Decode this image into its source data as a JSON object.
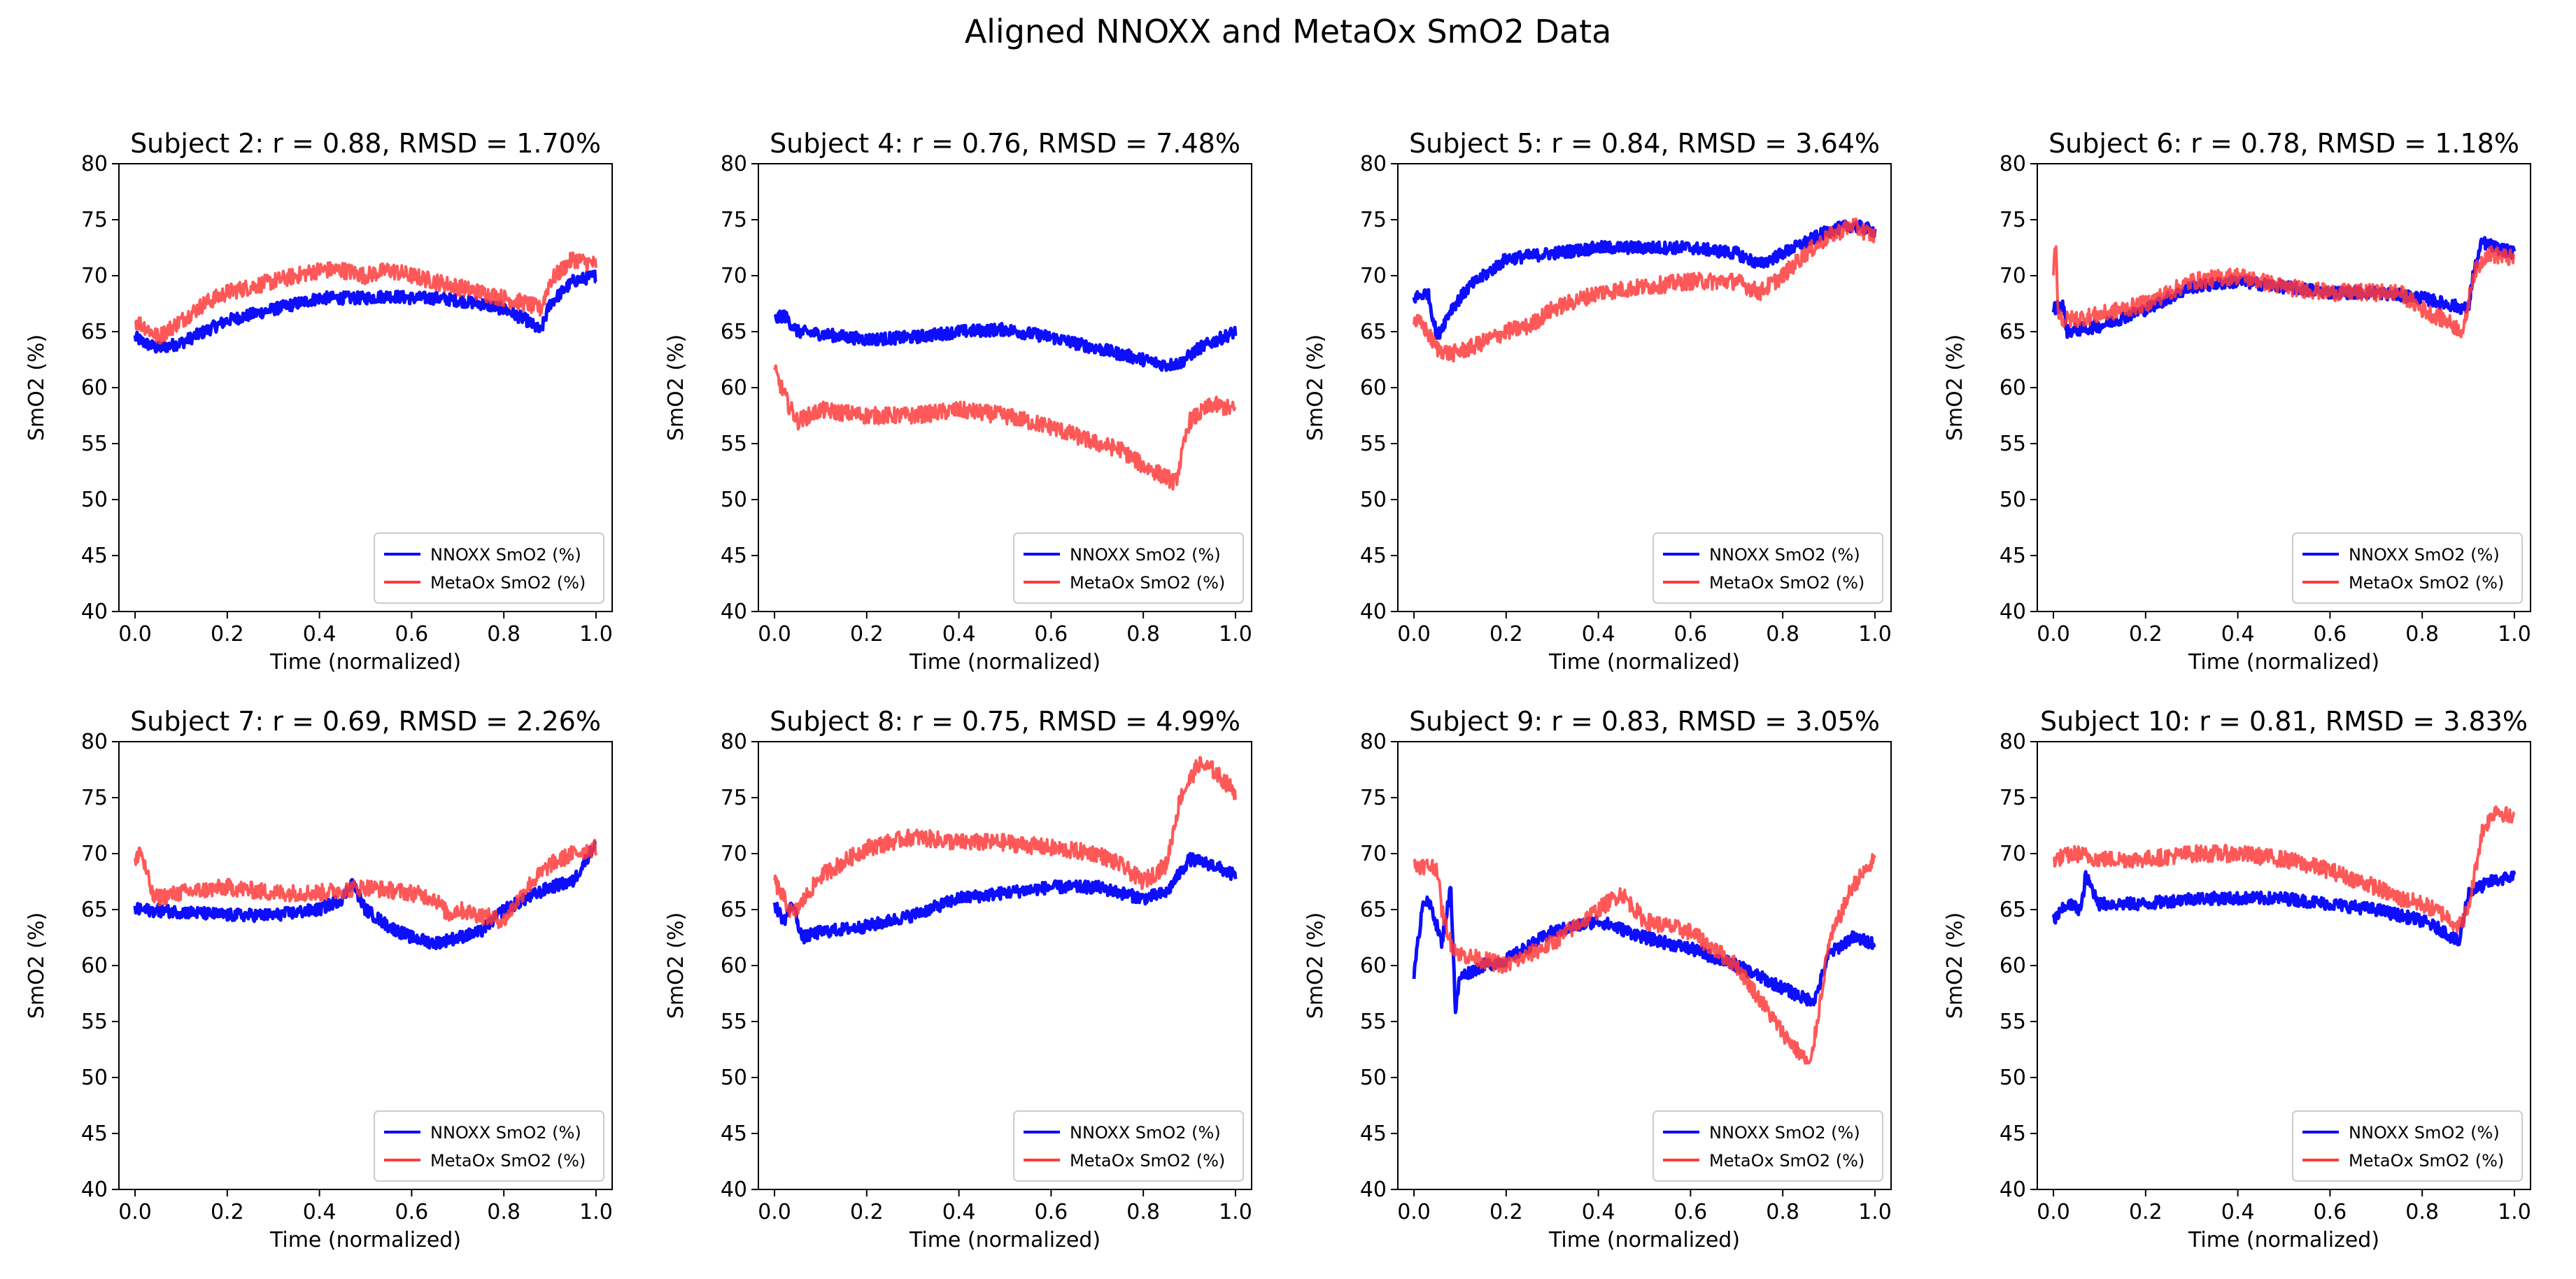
{
  "figure": {
    "title": "Aligned NNOXX and MetaOx SmO2 Data"
  },
  "colors": {
    "nnoxx": "#0000ff",
    "metaox": "#ff3b3b"
  },
  "chart_data": [
    {
      "type": "line",
      "title": "Subject 2: r = 0.88, RMSD = 1.70%",
      "xlabel": "Time (normalized)",
      "ylabel": "SmO2 (%)",
      "xlim": [
        0,
        1
      ],
      "ylim": [
        40,
        80
      ],
      "xticks": [
        "0.0",
        "0.2",
        "0.4",
        "0.6",
        "0.8",
        "1.0"
      ],
      "yticks": [
        "40",
        "45",
        "50",
        "55",
        "60",
        "65",
        "70",
        "75",
        "80"
      ],
      "legend": "lower-right",
      "grid": false,
      "series": [
        {
          "name": "NNOXX SmO2 (%)",
          "x": [
            0,
            0.02,
            0.05,
            0.1,
            0.15,
            0.2,
            0.25,
            0.3,
            0.35,
            0.4,
            0.45,
            0.5,
            0.55,
            0.6,
            0.65,
            0.7,
            0.75,
            0.8,
            0.85,
            0.88,
            0.9,
            0.95,
            1.0
          ],
          "y": [
            64.5,
            64,
            63.5,
            64,
            65,
            66,
            66.5,
            67,
            67.5,
            68,
            68,
            68,
            68.2,
            68,
            68,
            67.8,
            67.5,
            67,
            66,
            65,
            67.5,
            69.5,
            70
          ]
        },
        {
          "name": "MetaOx SmO2 (%)",
          "x": [
            0,
            0.02,
            0.05,
            0.1,
            0.15,
            0.2,
            0.25,
            0.3,
            0.35,
            0.4,
            0.45,
            0.5,
            0.55,
            0.6,
            0.65,
            0.7,
            0.75,
            0.8,
            0.85,
            0.88,
            0.9,
            0.95,
            1.0
          ],
          "y": [
            66,
            65.5,
            64.5,
            66,
            67.5,
            68.5,
            69,
            69.5,
            70,
            70.5,
            70.5,
            70,
            70.5,
            70,
            69.5,
            69,
            68.5,
            68,
            67.5,
            67,
            69.5,
            71.5,
            71
          ]
        }
      ]
    },
    {
      "type": "line",
      "title": "Subject 4: r = 0.76, RMSD = 7.48%",
      "xlabel": "Time (normalized)",
      "ylabel": "SmO2 (%)",
      "xlim": [
        0,
        1
      ],
      "ylim": [
        40,
        80
      ],
      "xticks": [
        "0.0",
        "0.2",
        "0.4",
        "0.6",
        "0.8",
        "1.0"
      ],
      "yticks": [
        "40",
        "45",
        "50",
        "55",
        "60",
        "65",
        "70",
        "75",
        "80"
      ],
      "legend": "lower-right",
      "grid": false,
      "series": [
        {
          "name": "NNOXX SmO2 (%)",
          "x": [
            0,
            0.02,
            0.05,
            0.1,
            0.2,
            0.3,
            0.4,
            0.5,
            0.6,
            0.7,
            0.8,
            0.85,
            0.88,
            0.92,
            1.0
          ],
          "y": [
            66,
            66.5,
            65,
            64.8,
            64.3,
            64.5,
            65,
            65.2,
            64.5,
            63.5,
            62.5,
            62,
            62.2,
            63.5,
            65
          ]
        },
        {
          "name": "MetaOx SmO2 (%)",
          "x": [
            0,
            0.03,
            0.05,
            0.1,
            0.2,
            0.3,
            0.4,
            0.5,
            0.6,
            0.7,
            0.75,
            0.8,
            0.85,
            0.87,
            0.9,
            0.95,
            1.0
          ],
          "y": [
            61.5,
            58.5,
            57,
            58,
            57.5,
            57.5,
            58,
            57.5,
            56.5,
            55,
            54.5,
            53,
            52,
            51.5,
            57,
            58.5,
            58
          ]
        }
      ]
    },
    {
      "type": "line",
      "title": "Subject 5: r = 0.84, RMSD = 3.64%",
      "xlabel": "Time (normalized)",
      "ylabel": "SmO2 (%)",
      "xlim": [
        0,
        1
      ],
      "ylim": [
        40,
        80
      ],
      "xticks": [
        "0.0",
        "0.2",
        "0.4",
        "0.6",
        "0.8",
        "1.0"
      ],
      "yticks": [
        "40",
        "45",
        "50",
        "55",
        "60",
        "65",
        "70",
        "75",
        "80"
      ],
      "legend": "lower-right",
      "grid": false,
      "series": [
        {
          "name": "NNOXX SmO2 (%)",
          "x": [
            0,
            0.03,
            0.05,
            0.08,
            0.12,
            0.2,
            0.3,
            0.4,
            0.5,
            0.6,
            0.7,
            0.75,
            0.8,
            0.85,
            0.9,
            0.95,
            1.0
          ],
          "y": [
            68,
            68.5,
            64.5,
            67,
            69,
            71.5,
            72,
            72.5,
            72.5,
            72.5,
            72,
            71,
            72,
            73,
            74,
            74.5,
            74
          ]
        },
        {
          "name": "MetaOx SmO2 (%)",
          "x": [
            0,
            0.02,
            0.05,
            0.08,
            0.12,
            0.2,
            0.25,
            0.3,
            0.4,
            0.5,
            0.6,
            0.7,
            0.75,
            0.8,
            0.85,
            0.9,
            0.95,
            1.0
          ],
          "y": [
            66,
            65.5,
            63.5,
            63,
            63.5,
            65,
            65.5,
            67,
            68.5,
            69,
            69.5,
            69.5,
            68.5,
            70,
            72,
            73.5,
            74.5,
            73.5
          ]
        }
      ]
    },
    {
      "type": "line",
      "title": "Subject 6: r = 0.78, RMSD = 1.18%",
      "xlabel": "Time (normalized)",
      "ylabel": "SmO2 (%)",
      "xlim": [
        0,
        1
      ],
      "ylim": [
        40,
        80
      ],
      "xticks": [
        "0.0",
        "0.2",
        "0.4",
        "0.6",
        "0.8",
        "1.0"
      ],
      "yticks": [
        "40",
        "45",
        "50",
        "55",
        "60",
        "65",
        "70",
        "75",
        "80"
      ],
      "legend": "lower-right",
      "grid": false,
      "series": [
        {
          "name": "NNOXX SmO2 (%)",
          "x": [
            0,
            0.02,
            0.03,
            0.1,
            0.2,
            0.3,
            0.4,
            0.5,
            0.6,
            0.7,
            0.8,
            0.9,
            0.91,
            0.93,
            0.96,
            1.0
          ],
          "y": [
            67,
            67.5,
            65,
            65.5,
            67,
            69,
            69.5,
            69,
            68.5,
            68.5,
            68,
            67,
            70,
            73,
            72.5,
            72
          ]
        },
        {
          "name": "MetaOx SmO2 (%)",
          "x": [
            0,
            0.005,
            0.01,
            0.02,
            0.1,
            0.2,
            0.3,
            0.4,
            0.5,
            0.6,
            0.7,
            0.75,
            0.8,
            0.85,
            0.89,
            0.91,
            0.94,
            1.0
          ],
          "y": [
            70,
            73.5,
            67,
            66,
            66.5,
            67.5,
            69.5,
            70,
            69,
            68.5,
            68.5,
            68.5,
            67,
            66,
            65,
            70,
            72,
            71.5
          ]
        }
      ]
    },
    {
      "type": "line",
      "title": "Subject 7: r = 0.69, RMSD = 2.26%",
      "xlabel": "Time (normalized)",
      "ylabel": "SmO2 (%)",
      "xlim": [
        0,
        1
      ],
      "ylim": [
        40,
        80
      ],
      "xticks": [
        "0.0",
        "0.2",
        "0.4",
        "0.6",
        "0.8",
        "1.0"
      ],
      "yticks": [
        "40",
        "45",
        "50",
        "55",
        "60",
        "65",
        "70",
        "75",
        "80"
      ],
      "legend": "lower-right",
      "grid": false,
      "series": [
        {
          "name": "NNOXX SmO2 (%)",
          "x": [
            0,
            0.1,
            0.2,
            0.3,
            0.4,
            0.45,
            0.47,
            0.5,
            0.55,
            0.6,
            0.65,
            0.7,
            0.75,
            0.8,
            0.85,
            0.9,
            0.95,
            1.0
          ],
          "y": [
            65,
            64.8,
            64.5,
            64.5,
            65,
            66,
            67.5,
            65,
            63.5,
            62.5,
            62,
            62.5,
            63,
            65,
            66,
            67,
            67.5,
            71
          ]
        },
        {
          "name": "MetaOx SmO2 (%)",
          "x": [
            0,
            0.01,
            0.02,
            0.04,
            0.1,
            0.2,
            0.3,
            0.4,
            0.5,
            0.6,
            0.65,
            0.68,
            0.7,
            0.75,
            0.8,
            0.85,
            0.9,
            0.95,
            1.0
          ],
          "y": [
            69,
            70.5,
            69,
            66,
            66.5,
            67,
            66.5,
            66.5,
            67,
            66.5,
            66,
            64.5,
            65,
            64.5,
            64,
            67,
            69,
            70,
            70.5
          ]
        }
      ]
    },
    {
      "type": "line",
      "title": "Subject 8: r = 0.75, RMSD = 4.99%",
      "xlabel": "Time (normalized)",
      "ylabel": "SmO2 (%)",
      "xlim": [
        0,
        1
      ],
      "ylim": [
        40,
        80
      ],
      "xticks": [
        "0.0",
        "0.2",
        "0.4",
        "0.6",
        "0.8",
        "1.0"
      ],
      "yticks": [
        "40",
        "45",
        "50",
        "55",
        "60",
        "65",
        "70",
        "75",
        "80"
      ],
      "legend": "lower-right",
      "grid": false,
      "series": [
        {
          "name": "NNOXX SmO2 (%)",
          "x": [
            0,
            0.02,
            0.04,
            0.06,
            0.1,
            0.2,
            0.3,
            0.4,
            0.5,
            0.6,
            0.7,
            0.8,
            0.85,
            0.9,
            0.95,
            1.0
          ],
          "y": [
            65.5,
            64,
            65.5,
            62.5,
            63,
            63.5,
            64.5,
            66,
            66.5,
            67,
            67,
            66,
            66.5,
            69.5,
            69,
            68
          ]
        },
        {
          "name": "MetaOx SmO2 (%)",
          "x": [
            0,
            0.02,
            0.04,
            0.1,
            0.2,
            0.3,
            0.4,
            0.5,
            0.6,
            0.7,
            0.75,
            0.8,
            0.85,
            0.88,
            0.92,
            0.95,
            1.0
          ],
          "y": [
            67.5,
            66,
            64.5,
            68,
            70.5,
            71.5,
            71,
            71,
            70.5,
            70,
            69,
            67.5,
            69,
            75,
            78,
            77.5,
            75.5
          ]
        }
      ]
    },
    {
      "type": "line",
      "title": "Subject 9: r = 0.83, RMSD = 3.05%",
      "xlabel": "Time (normalized)",
      "ylabel": "SmO2 (%)",
      "xlim": [
        0,
        1
      ],
      "ylim": [
        40,
        80
      ],
      "xticks": [
        "0.0",
        "0.2",
        "0.4",
        "0.6",
        "0.8",
        "1.0"
      ],
      "yticks": [
        "40",
        "45",
        "50",
        "55",
        "60",
        "65",
        "70",
        "75",
        "80"
      ],
      "legend": "lower-right",
      "grid": false,
      "series": [
        {
          "name": "NNOXX SmO2 (%)",
          "x": [
            0,
            0.02,
            0.04,
            0.06,
            0.08,
            0.09,
            0.1,
            0.15,
            0.2,
            0.3,
            0.4,
            0.5,
            0.6,
            0.7,
            0.8,
            0.85,
            0.87,
            0.9,
            0.95,
            1.0
          ],
          "y": [
            59,
            66,
            65,
            62,
            67,
            56,
            59,
            60,
            60.5,
            63,
            64,
            62.5,
            61.5,
            60,
            58,
            57,
            57,
            61,
            62.5,
            62
          ]
        },
        {
          "name": "MetaOx SmO2 (%)",
          "x": [
            0,
            0.05,
            0.06,
            0.08,
            0.1,
            0.2,
            0.3,
            0.4,
            0.45,
            0.5,
            0.6,
            0.7,
            0.75,
            0.8,
            0.85,
            0.86,
            0.9,
            0.95,
            1.0
          ],
          "y": [
            69,
            68.8,
            65,
            62,
            61,
            60,
            62,
            65,
            66.5,
            64,
            63,
            60,
            57,
            54,
            51.5,
            51,
            62,
            67,
            69.5
          ]
        }
      ]
    },
    {
      "type": "line",
      "title": "Subject 10: r = 0.81, RMSD = 3.83%",
      "xlabel": "Time (normalized)",
      "ylabel": "SmO2 (%)",
      "xlim": [
        0,
        1
      ],
      "ylim": [
        40,
        80
      ],
      "xticks": [
        "0.0",
        "0.2",
        "0.4",
        "0.6",
        "0.8",
        "1.0"
      ],
      "yticks": [
        "40",
        "45",
        "50",
        "55",
        "60",
        "65",
        "70",
        "75",
        "80"
      ],
      "legend": "lower-right",
      "grid": false,
      "series": [
        {
          "name": "NNOXX SmO2 (%)",
          "x": [
            0,
            0.03,
            0.06,
            0.07,
            0.1,
            0.2,
            0.3,
            0.4,
            0.5,
            0.6,
            0.7,
            0.8,
            0.85,
            0.88,
            0.9,
            0.95,
            1.0
          ],
          "y": [
            64,
            65.5,
            65,
            68,
            65.5,
            65.5,
            66,
            66,
            66,
            65.5,
            65,
            64,
            63,
            62,
            66.5,
            67.5,
            68
          ]
        },
        {
          "name": "MetaOx SmO2 (%)",
          "x": [
            0,
            0.05,
            0.1,
            0.2,
            0.3,
            0.4,
            0.5,
            0.6,
            0.7,
            0.75,
            0.8,
            0.85,
            0.88,
            0.9,
            0.93,
            0.96,
            1.0
          ],
          "y": [
            69.5,
            70,
            69.5,
            69.5,
            70,
            70,
            69.5,
            68.5,
            67,
            66,
            65.5,
            64.5,
            63.5,
            65,
            72,
            74,
            73
          ]
        }
      ]
    }
  ]
}
